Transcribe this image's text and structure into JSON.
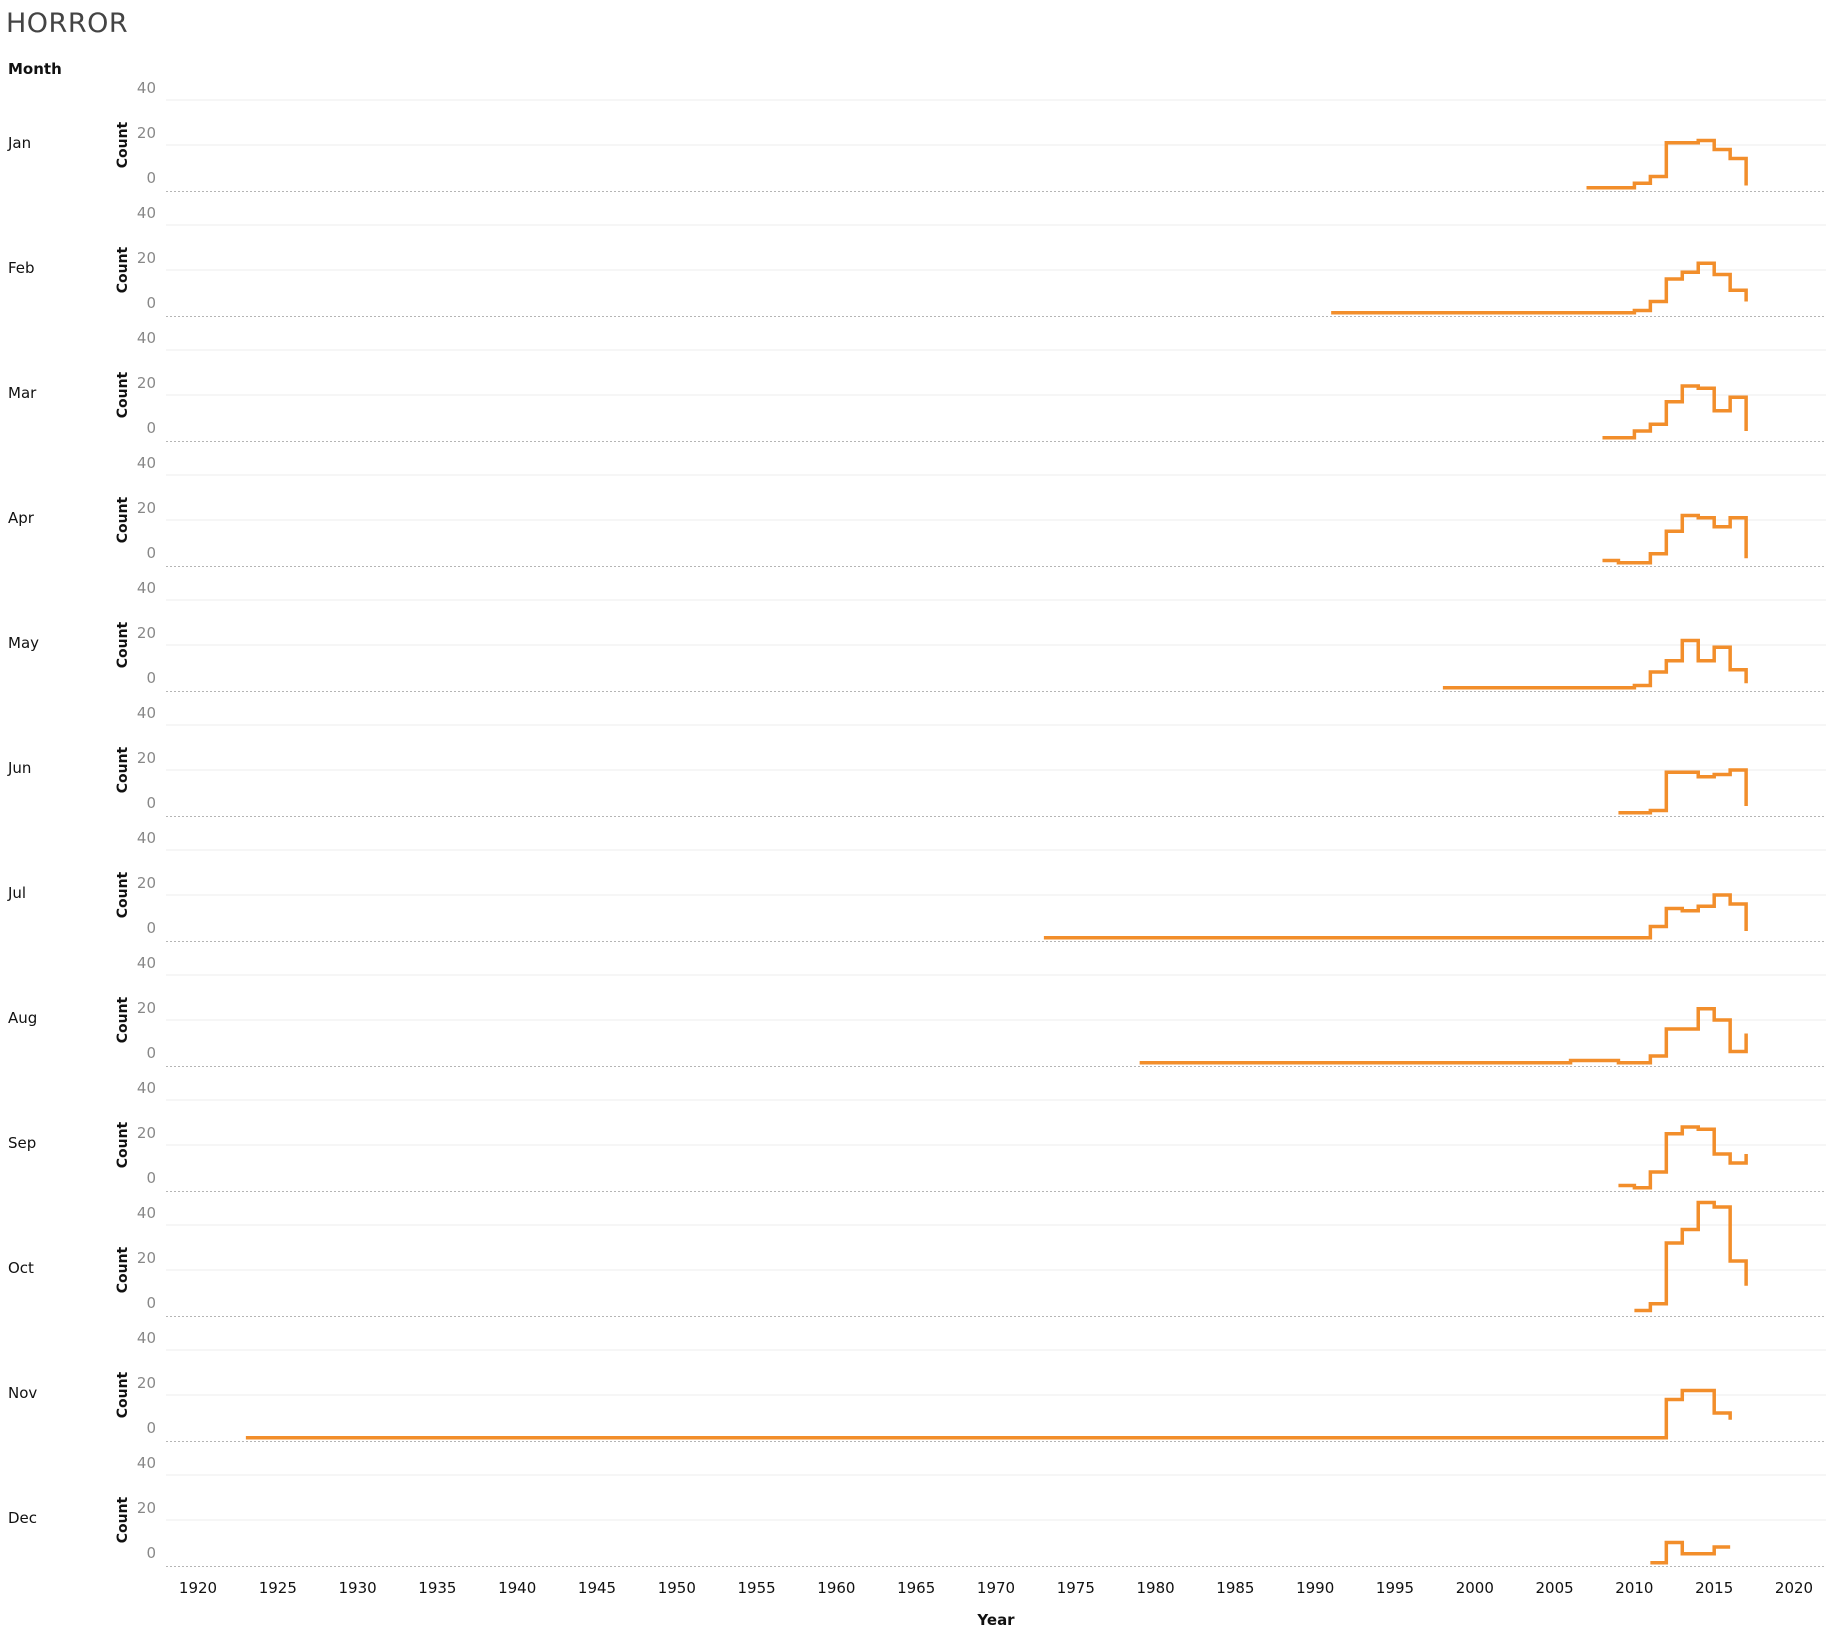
{
  "header": {
    "title": "HORROR",
    "row_header": "Month"
  },
  "chart_data": {
    "type": "line",
    "line_shape": "step",
    "title": "HORROR",
    "row_label": "Month",
    "xlabel": "Year",
    "ylabel": "Count",
    "xlim": [
      1918,
      2021
    ],
    "ylim": [
      0,
      40
    ],
    "x_ticks": [
      1920,
      1925,
      1930,
      1935,
      1940,
      1945,
      1950,
      1955,
      1960,
      1965,
      1970,
      1975,
      1980,
      1985,
      1990,
      1995,
      2000,
      2005,
      2010,
      2015,
      2020
    ],
    "y_ticks": [
      0,
      20,
      40
    ],
    "grid": true,
    "color": "#F28E2B",
    "series": [
      {
        "name": "Jan",
        "x": [
          2007,
          2008,
          2009,
          2010,
          2011,
          2012,
          2013,
          2014,
          2015,
          2016,
          2017
        ],
        "y": [
          1,
          1,
          1,
          3,
          6,
          21,
          21,
          22,
          18,
          14,
          2
        ]
      },
      {
        "name": "Feb",
        "x": [
          1991,
          2009,
          2010,
          2011,
          2012,
          2013,
          2014,
          2015,
          2016,
          2017
        ],
        "y": [
          1,
          1,
          2,
          6,
          16,
          19,
          23,
          18,
          11,
          6
        ]
      },
      {
        "name": "Mar",
        "x": [
          2008,
          2009,
          2010,
          2011,
          2012,
          2013,
          2014,
          2015,
          2016,
          2017
        ],
        "y": [
          1,
          1,
          4,
          7,
          17,
          24,
          23,
          13,
          19,
          4
        ]
      },
      {
        "name": "Apr",
        "x": [
          2008,
          2009,
          2010,
          2011,
          2012,
          2013,
          2014,
          2015,
          2016,
          2017
        ],
        "y": [
          2,
          1,
          1,
          5,
          15,
          22,
          21,
          17,
          21,
          3
        ]
      },
      {
        "name": "May",
        "x": [
          1998,
          2009,
          2010,
          2011,
          2012,
          2013,
          2014,
          2015,
          2016,
          2017
        ],
        "y": [
          1,
          1,
          2,
          8,
          13,
          22,
          13,
          19,
          9,
          3
        ]
      },
      {
        "name": "Jun",
        "x": [
          2009,
          2010,
          2011,
          2012,
          2013,
          2014,
          2015,
          2016,
          2017
        ],
        "y": [
          1,
          1,
          2,
          19,
          19,
          17,
          18,
          20,
          4
        ]
      },
      {
        "name": "Jul",
        "x": [
          1973,
          2006,
          2010,
          2011,
          2012,
          2013,
          2014,
          2015,
          2016,
          2017
        ],
        "y": [
          1,
          1,
          1,
          6,
          14,
          13,
          15,
          20,
          16,
          4
        ]
      },
      {
        "name": "Aug",
        "x": [
          1979,
          2006,
          2009,
          2011,
          2012,
          2013,
          2014,
          2015,
          2016,
          2017
        ],
        "y": [
          1,
          2,
          1,
          4,
          16,
          16,
          25,
          20,
          6,
          14
        ]
      },
      {
        "name": "Sep",
        "x": [
          2009,
          2010,
          2011,
          2012,
          2013,
          2014,
          2015,
          2016,
          2017
        ],
        "y": [
          2,
          1,
          8,
          25,
          28,
          27,
          16,
          12,
          16
        ]
      },
      {
        "name": "Oct",
        "x": [
          2010,
          2011,
          2012,
          2013,
          2014,
          2015,
          2016,
          2017
        ],
        "y": [
          2,
          5,
          32,
          38,
          50,
          48,
          24,
          13
        ]
      },
      {
        "name": "Nov",
        "x": [
          1923,
          1999,
          2009,
          2012,
          2013,
          2014,
          2015,
          2016
        ],
        "y": [
          1,
          1,
          1,
          18,
          22,
          22,
          12,
          9
        ]
      },
      {
        "name": "Dec",
        "x": [
          2011,
          2012,
          2013,
          2014,
          2015,
          2016
        ],
        "y": [
          1,
          10,
          5,
          5,
          8,
          8
        ]
      }
    ]
  }
}
